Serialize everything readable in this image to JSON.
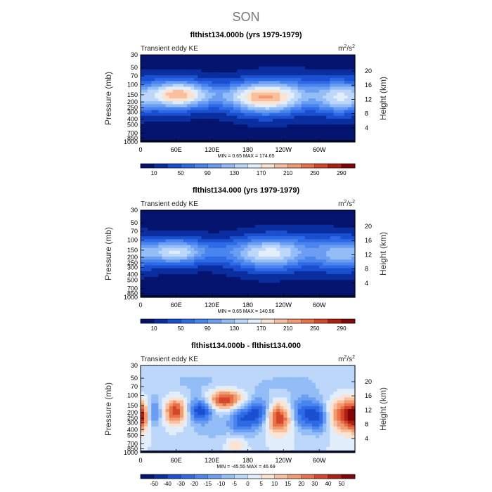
{
  "figure": {
    "season_title": "SON"
  },
  "scales": {
    "ke": {
      "colors": [
        "#05146e",
        "#0a2ea0",
        "#1a4fd0",
        "#2f6ae6",
        "#4a84ee",
        "#6b9ef2",
        "#93bdf6",
        "#bcd7fa",
        "#e2eefc",
        "#fbe3d2",
        "#f8c09f",
        "#f29b70",
        "#e8714a",
        "#d4472a",
        "#b02012",
        "#820607"
      ],
      "bin_labels": [
        "10",
        "50",
        "90",
        "130",
        "170",
        "210",
        "250",
        "290"
      ]
    },
    "diff": {
      "colors": [
        "#05146e",
        "#0a2ea0",
        "#1a4fd0",
        "#2f6ae6",
        "#4a84ee",
        "#6b9ef2",
        "#93bdf6",
        "#bcd7fa",
        "#e2eefc",
        "#fbe3d2",
        "#f8c09f",
        "#f29b70",
        "#e8714a",
        "#d4472a",
        "#b02012",
        "#820607"
      ],
      "bin_labels": [
        "-50",
        "-40",
        "-30",
        "-20",
        "-15",
        "-10",
        "-5",
        "0",
        "5",
        "10",
        "15",
        "20",
        "30",
        "40",
        "50"
      ]
    }
  },
  "chart_data": [
    {
      "type": "heatmap",
      "title": "flthist134.000b (yrs 1979-1979)",
      "left_label": "Transient eddy KE",
      "units_base": "m",
      "units_sup1": "2",
      "units_mid": "/s",
      "units_sup2": "2",
      "ylabel": "Pressure (mb)",
      "ylabel2": "Height (km)",
      "stats": "MIN =     0.65   MAX =  174.65",
      "x_ticks": [
        "0",
        "60E",
        "120E",
        "180",
        "120W",
        "60W"
      ],
      "x_tick_lons": [
        0,
        60,
        120,
        180,
        240,
        300
      ],
      "xlim": [
        0,
        360
      ],
      "y_ticks": [
        "30",
        "50",
        "70",
        "100",
        "150",
        "200",
        "250",
        "300",
        "400",
        "500",
        "700",
        "850",
        "1000"
      ],
      "y_tick_pressures": [
        30,
        50,
        70,
        100,
        150,
        200,
        250,
        300,
        400,
        500,
        700,
        850,
        1000
      ],
      "ylim_mb": [
        1000,
        30
      ],
      "height_ticks": [
        "20",
        "16",
        "12",
        "8",
        "4"
      ],
      "height_tick_km": [
        20,
        16,
        12,
        8,
        4
      ],
      "scale": "ke",
      "field": {
        "background": 12,
        "lon_grid": [
          0,
          15,
          30,
          45,
          60,
          75,
          90,
          105,
          120,
          135,
          150,
          165,
          180,
          195,
          210,
          225,
          240,
          255,
          270,
          285,
          300,
          315,
          330,
          345,
          360
        ],
        "lat_levels": [
          "30",
          "50",
          "70",
          "100",
          "150",
          "200",
          "250",
          "300",
          "400",
          "500",
          "700",
          "850",
          "1000"
        ],
        "blobs": [
          {
            "lon": 60,
            "p": 150,
            "dlon": 35,
            "dlogp": 0.18,
            "amp": 170
          },
          {
            "lon": 210,
            "p": 170,
            "dlon": 45,
            "dlogp": 0.2,
            "amp": 175
          },
          {
            "lon": 335,
            "p": 170,
            "dlon": 30,
            "dlogp": 0.2,
            "amp": 120
          },
          {
            "lon": 120,
            "p": 150,
            "dlon": 60,
            "dlogp": 0.15,
            "amp": 45
          },
          {
            "lon": 270,
            "p": 130,
            "dlon": 50,
            "dlogp": 0.2,
            "amp": 40
          }
        ]
      }
    },
    {
      "type": "heatmap",
      "title": "flthist134.000 (yrs 1979-1979)",
      "left_label": "Transient eddy KE",
      "units_base": "m",
      "units_sup1": "2",
      "units_mid": "/s",
      "units_sup2": "2",
      "ylabel": "Pressure (mb)",
      "ylabel2": "Height (km)",
      "stats": "MIN =     0.65   MAX =  140.96",
      "x_ticks": [
        "0",
        "60E",
        "120E",
        "180",
        "120W",
        "60W"
      ],
      "x_tick_lons": [
        0,
        60,
        120,
        180,
        240,
        300
      ],
      "xlim": [
        0,
        360
      ],
      "y_ticks": [
        "30",
        "50",
        "70",
        "100",
        "150",
        "200",
        "250",
        "300",
        "400",
        "500",
        "700",
        "850",
        "1000"
      ],
      "y_tick_pressures": [
        30,
        50,
        70,
        100,
        150,
        200,
        250,
        300,
        400,
        500,
        700,
        850,
        1000
      ],
      "ylim_mb": [
        1000,
        30
      ],
      "height_ticks": [
        "20",
        "16",
        "12",
        "8",
        "4"
      ],
      "height_tick_km": [
        20,
        16,
        12,
        8,
        4
      ],
      "scale": "ke",
      "field": {
        "background": 12,
        "blobs": [
          {
            "lon": 55,
            "p": 160,
            "dlon": 35,
            "dlogp": 0.16,
            "amp": 120
          },
          {
            "lon": 215,
            "p": 175,
            "dlon": 45,
            "dlogp": 0.2,
            "amp": 125
          },
          {
            "lon": 335,
            "p": 180,
            "dlon": 30,
            "dlogp": 0.2,
            "amp": 95
          },
          {
            "lon": 120,
            "p": 160,
            "dlon": 60,
            "dlogp": 0.15,
            "amp": 40
          },
          {
            "lon": 270,
            "p": 140,
            "dlon": 50,
            "dlogp": 0.2,
            "amp": 35
          }
        ]
      }
    },
    {
      "type": "heatmap",
      "title": "flthist134.000b - flthist134.000",
      "left_label": "Transient eddy KE",
      "units_base": "m",
      "units_sup1": "2",
      "units_mid": "/s",
      "units_sup2": "2",
      "ylabel": "Pressure (mb)",
      "ylabel2": "Height (km)",
      "stats": "MIN =   -45.55   MAX =   46.69",
      "x_ticks": [
        "0",
        "60E",
        "120E",
        "180",
        "120W",
        "60W"
      ],
      "x_tick_lons": [
        0,
        60,
        120,
        180,
        240,
        300
      ],
      "xlim": [
        0,
        360
      ],
      "y_ticks": [
        "30",
        "50",
        "70",
        "100",
        "150",
        "200",
        "250",
        "300",
        "400",
        "500",
        "700",
        "850",
        "1000"
      ],
      "y_tick_pressures": [
        30,
        50,
        70,
        100,
        150,
        200,
        250,
        300,
        400,
        500,
        700,
        850,
        1000
      ],
      "ylim_mb": [
        1000,
        30
      ],
      "height_ticks": [
        "20",
        "16",
        "12",
        "8",
        "4"
      ],
      "height_tick_km": [
        20,
        16,
        12,
        8,
        4
      ],
      "scale": "diff",
      "field": {
        "background": 0,
        "blobs": [
          {
            "lon": 0,
            "p": 230,
            "dlon": 10,
            "dlogp": 0.18,
            "amp": 40
          },
          {
            "lon": 22,
            "p": 200,
            "dlon": 10,
            "dlogp": 0.18,
            "amp": -25
          },
          {
            "lon": 60,
            "p": 190,
            "dlon": 14,
            "dlogp": 0.16,
            "amp": 42
          },
          {
            "lon": 100,
            "p": 180,
            "dlon": 16,
            "dlogp": 0.15,
            "amp": -40
          },
          {
            "lon": 142,
            "p": 120,
            "dlon": 22,
            "dlogp": 0.12,
            "amp": 45
          },
          {
            "lon": 170,
            "p": 260,
            "dlon": 16,
            "dlogp": 0.2,
            "amp": -30
          },
          {
            "lon": 200,
            "p": 200,
            "dlon": 14,
            "dlogp": 0.18,
            "amp": -35
          },
          {
            "lon": 232,
            "p": 250,
            "dlon": 16,
            "dlogp": 0.18,
            "amp": 45
          },
          {
            "lon": 275,
            "p": 210,
            "dlon": 18,
            "dlogp": 0.2,
            "amp": -35
          },
          {
            "lon": 300,
            "p": 250,
            "dlon": 10,
            "dlogp": 0.18,
            "amp": -25
          },
          {
            "lon": 340,
            "p": 220,
            "dlon": 16,
            "dlogp": 0.2,
            "amp": 35
          },
          {
            "lon": 160,
            "p": 700,
            "dlon": 12,
            "dlogp": 0.12,
            "amp": 18
          },
          {
            "lon": 90,
            "p": 60,
            "dlon": 50,
            "dlogp": 0.2,
            "amp": -8
          },
          {
            "lon": 250,
            "p": 60,
            "dlon": 60,
            "dlogp": 0.2,
            "amp": -8
          },
          {
            "lon": 120,
            "p": 450,
            "dlon": 40,
            "dlogp": 0.25,
            "amp": -7
          }
        ]
      }
    }
  ]
}
